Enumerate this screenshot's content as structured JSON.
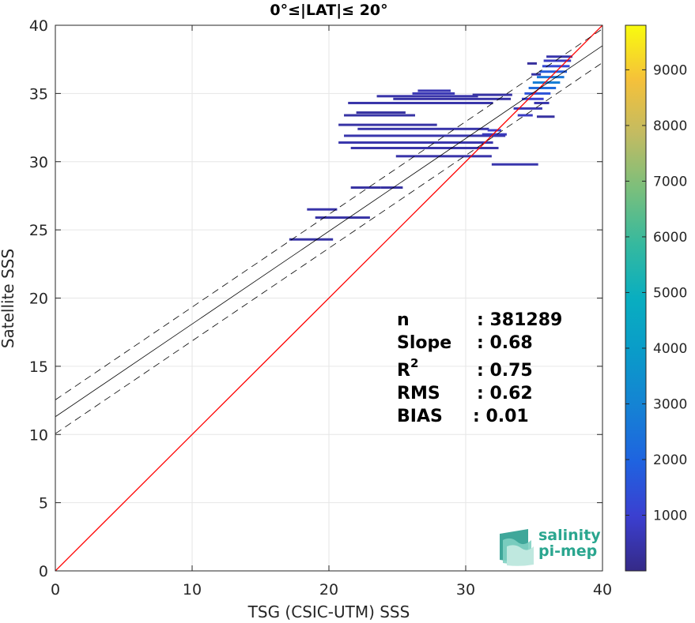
{
  "chart_data": {
    "type": "heatmap",
    "title": "0°≤|LAT|≤ 20°",
    "xlabel": "TSG (CSIC-UTM) SSS",
    "ylabel": "Satellite SSS",
    "xlim": [
      0,
      40
    ],
    "ylim": [
      0,
      40
    ],
    "xticks": [
      "0",
      "10",
      "20",
      "30",
      "40"
    ],
    "yticks": [
      "0",
      "5",
      "10",
      "15",
      "20",
      "25",
      "30",
      "35",
      "40"
    ],
    "grid": true,
    "colorbar": {
      "range": [
        0,
        9800
      ],
      "ticks": [
        "1000",
        "2000",
        "3000",
        "4000",
        "5000",
        "6000",
        "7000",
        "8000",
        "9000"
      ],
      "colormap": "parula"
    },
    "reference_line": {
      "name": "1:1",
      "color": "#ff0000",
      "x": [
        0,
        40
      ],
      "y": [
        0,
        40
      ]
    },
    "regression": {
      "slope": 0.68,
      "intercept": 11.3,
      "band": 1.24,
      "color": "#000000"
    },
    "density_segments": [
      {
        "x0": 17.1,
        "x1": 20.3,
        "y": 24.3,
        "c": 400
      },
      {
        "x0": 19.0,
        "x1": 23.0,
        "y": 25.9,
        "c": 400
      },
      {
        "x0": 18.4,
        "x1": 20.6,
        "y": 26.5,
        "c": 450
      },
      {
        "x0": 21.6,
        "x1": 23.8,
        "y": 28.1,
        "c": 350
      },
      {
        "x0": 23.8,
        "x1": 25.4,
        "y": 28.1,
        "c": 350
      },
      {
        "x0": 24.9,
        "x1": 31.9,
        "y": 30.4,
        "c": 450
      },
      {
        "x0": 31.9,
        "x1": 35.3,
        "y": 29.8,
        "c": 500
      },
      {
        "x0": 21.6,
        "x1": 32.4,
        "y": 31.0,
        "c": 450
      },
      {
        "x0": 20.7,
        "x1": 32.0,
        "y": 31.4,
        "c": 500
      },
      {
        "x0": 21.1,
        "x1": 32.9,
        "y": 31.9,
        "c": 500
      },
      {
        "x0": 22.1,
        "x1": 31.7,
        "y": 32.4,
        "c": 450
      },
      {
        "x0": 20.7,
        "x1": 27.9,
        "y": 32.7,
        "c": 400
      },
      {
        "x0": 21.1,
        "x1": 26.3,
        "y": 33.4,
        "c": 400
      },
      {
        "x0": 22.0,
        "x1": 25.6,
        "y": 33.6,
        "c": 350
      },
      {
        "x0": 21.4,
        "x1": 32.0,
        "y": 34.3,
        "c": 450
      },
      {
        "x0": 24.7,
        "x1": 33.3,
        "y": 34.6,
        "c": 400
      },
      {
        "x0": 23.5,
        "x1": 30.9,
        "y": 34.8,
        "c": 450
      },
      {
        "x0": 26.1,
        "x1": 29.2,
        "y": 35.0,
        "c": 600
      },
      {
        "x0": 26.5,
        "x1": 28.9,
        "y": 35.2,
        "c": 600
      },
      {
        "x0": 30.5,
        "x1": 33.4,
        "y": 34.9,
        "c": 400
      },
      {
        "x0": 31.2,
        "x1": 33.0,
        "y": 32.0,
        "c": 700
      },
      {
        "x0": 31.6,
        "x1": 32.6,
        "y": 32.3,
        "c": 900
      },
      {
        "x0": 33.8,
        "x1": 34.9,
        "y": 33.4,
        "c": 800
      },
      {
        "x0": 33.5,
        "x1": 35.6,
        "y": 33.9,
        "c": 600
      },
      {
        "x0": 34.1,
        "x1": 35.7,
        "y": 34.6,
        "c": 1000
      },
      {
        "x0": 34.3,
        "x1": 36.2,
        "y": 35.0,
        "c": 1500
      },
      {
        "x0": 34.6,
        "x1": 36.6,
        "y": 35.4,
        "c": 2200
      },
      {
        "x0": 34.9,
        "x1": 36.9,
        "y": 35.8,
        "c": 2800
      },
      {
        "x0": 35.2,
        "x1": 37.2,
        "y": 36.2,
        "c": 2600
      },
      {
        "x0": 35.4,
        "x1": 37.4,
        "y": 36.6,
        "c": 1800
      },
      {
        "x0": 35.6,
        "x1": 37.6,
        "y": 37.0,
        "c": 1200
      },
      {
        "x0": 35.7,
        "x1": 37.7,
        "y": 37.4,
        "c": 800
      },
      {
        "x0": 35.9,
        "x1": 37.8,
        "y": 37.7,
        "c": 500
      },
      {
        "x0": 34.8,
        "x1": 35.5,
        "y": 36.4,
        "c": 400
      },
      {
        "x0": 34.5,
        "x1": 35.2,
        "y": 37.2,
        "c": 300
      },
      {
        "x0": 35.0,
        "x1": 36.1,
        "y": 34.3,
        "c": 500
      },
      {
        "x0": 35.2,
        "x1": 36.5,
        "y": 33.3,
        "c": 350
      }
    ]
  },
  "stats": {
    "n": {
      "label": "n",
      "value": ": 381289"
    },
    "slope": {
      "label": "Slope",
      "value": ": 0.68"
    },
    "r2": {
      "label": "R",
      "sup": "2",
      "value": ": 0.75"
    },
    "rms": {
      "label": "RMS",
      "value": ": 0.62"
    },
    "bias": {
      "label": "BIAS",
      "value": ": 0.01"
    }
  },
  "logo": {
    "line1": "salinity",
    "line2": "pi-mep",
    "color": "#2aa68f"
  }
}
